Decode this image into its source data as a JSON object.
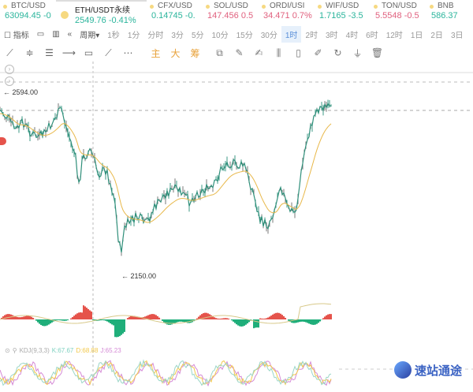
{
  "tickers": [
    {
      "symbol": "BTC/USD",
      "price": "63094.45",
      "change": "-0",
      "dir": "up"
    },
    {
      "symbol": "ETH/USDT永续",
      "price": "2549.76",
      "change": "-0.41%",
      "dir": "up",
      "active": true
    },
    {
      "symbol": "CFX/USD",
      "price": "0.14745",
      "change": "-0.",
      "dir": "up"
    },
    {
      "symbol": "SOL/USD",
      "price": "147.456",
      "change": "0.5",
      "dir": "down"
    },
    {
      "symbol": "ORDI/USI",
      "price": "34.471",
      "change": "0.7%",
      "dir": "down"
    },
    {
      "symbol": "WIF/USD",
      "price": "1.7165",
      "change": "-3.5",
      "dir": "up"
    },
    {
      "symbol": "TON/USD",
      "price": "5.5548",
      "change": "-0.5",
      "dir": "down"
    },
    {
      "symbol": "BNB",
      "price": "586.37",
      "change": "",
      "dir": "up"
    }
  ],
  "toolbar": {
    "indicators": "指标",
    "period": "周期",
    "intervals": [
      "1秒",
      "1分",
      "分时",
      "3分",
      "5分",
      "10分",
      "15分",
      "30分",
      "1时",
      "2时",
      "3时",
      "4时",
      "6时",
      "12时",
      "1日",
      "2日",
      "3日"
    ],
    "selected_interval": "1时"
  },
  "drawing_tools": {
    "main": "主",
    "big": "大",
    "chips": "筹"
  },
  "chart": {
    "high_label": "2594.00",
    "low_label": "2150.00",
    "colors": {
      "up": "#e5534b",
      "down": "#1fae7a",
      "ma": "#e8b84a"
    }
  },
  "kdj": {
    "name": "KDJ(9,3,3)",
    "k": "K:67.67",
    "d": "D:68.88",
    "j": "J:65.23"
  },
  "watermark": "速站通途"
}
